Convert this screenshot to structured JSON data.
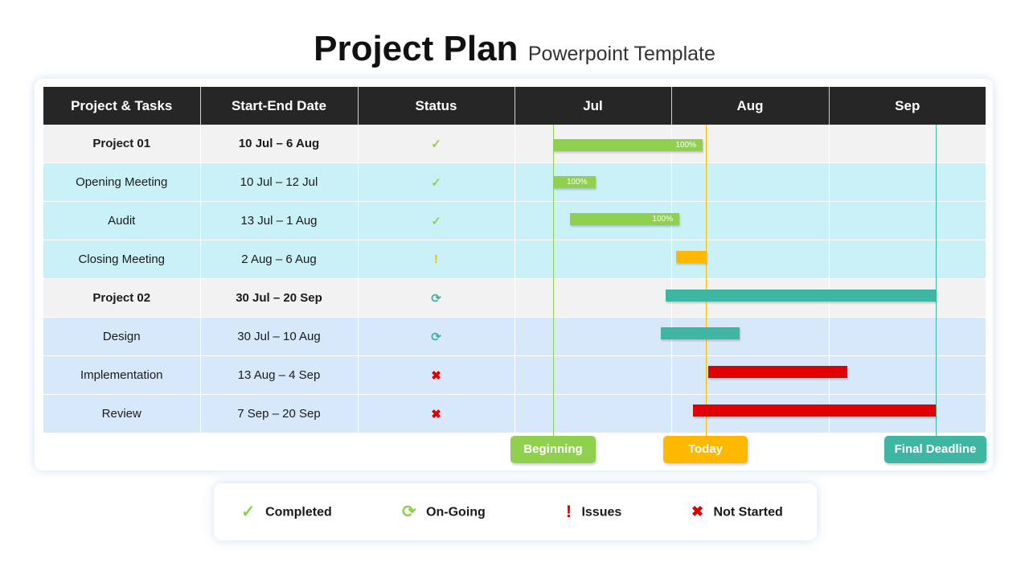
{
  "title": {
    "main": "Project Plan",
    "sub": "Powerpoint Template"
  },
  "columns": [
    "Project & Tasks",
    "Start-End Date",
    "Status",
    "Jul",
    "Aug",
    "Sep"
  ],
  "rows": [
    {
      "name": "Project 01",
      "dates": "10 Jul – 6 Aug",
      "status_icon": "✓",
      "status": "completed",
      "bold": true
    },
    {
      "name": "Opening Meeting",
      "dates": "10 Jul – 12 Jul",
      "status_icon": "✓",
      "status": "completed"
    },
    {
      "name": "Audit",
      "dates": "13 Jul – 1 Aug",
      "status_icon": "✓",
      "status": "completed"
    },
    {
      "name": "Closing Meeting",
      "dates": "2 Aug – 6 Aug",
      "status_icon": "!",
      "status": "issues"
    },
    {
      "name": "Project 02",
      "dates": "30 Jul – 20 Sep",
      "status_icon": "⟳",
      "status": "on-going",
      "bold": true
    },
    {
      "name": "Design",
      "dates": "30 Jul – 10 Aug",
      "status_icon": "⟳",
      "status": "on-going"
    },
    {
      "name": "Implementation",
      "dates": "13 Aug – 4 Sep",
      "status_icon": "✖",
      "status": "not-started"
    },
    {
      "name": "Review",
      "dates": "7 Sep – 20 Sep",
      "status_icon": "✖",
      "status": "not-started"
    }
  ],
  "bars": [
    {
      "task": "Project 01",
      "start": "10 Jul",
      "end": "6 Aug",
      "color": "#8fd14f",
      "label": "100%"
    },
    {
      "task": "Opening Meeting",
      "start": "10 Jul",
      "end": "12 Jul",
      "color": "#8fd14f",
      "label": "100%"
    },
    {
      "task": "Audit",
      "start": "13 Jul",
      "end": "1 Aug",
      "color": "#8fd14f",
      "label": "100%"
    },
    {
      "task": "Closing Meeting",
      "start": "2 Aug",
      "end": "6 Aug",
      "color": "#ffb800",
      "label": ""
    },
    {
      "task": "Project 02",
      "start": "30 Jul",
      "end": "20 Sep",
      "color": "#3fb5a4",
      "label": ""
    },
    {
      "task": "Design",
      "start": "30 Jul",
      "end": "10 Aug",
      "color": "#3fb5a4",
      "label": ""
    },
    {
      "task": "Implementation",
      "start": "13 Aug",
      "end": "4 Sep",
      "color": "#e00000",
      "label": ""
    },
    {
      "task": "Review",
      "start": "7 Sep",
      "end": "20 Sep",
      "color": "#e00000",
      "label": ""
    }
  ],
  "milestones": {
    "beginning": "Beginning",
    "today": "Today",
    "deadline": "Final Deadline"
  },
  "legend": {
    "completed": {
      "icon": "✓",
      "label": "Completed"
    },
    "ongoing": {
      "icon": "⟳",
      "label": "On-Going"
    },
    "issues": {
      "icon": "!",
      "label": "Issues"
    },
    "notstarted": {
      "icon": "✖",
      "label": "Not Started"
    }
  },
  "colors": {
    "completed": "#8fd14f",
    "ongoing": "#3fb5a4",
    "issues": "#ffb800",
    "notstarted": "#e00000",
    "header": "#262626"
  }
}
